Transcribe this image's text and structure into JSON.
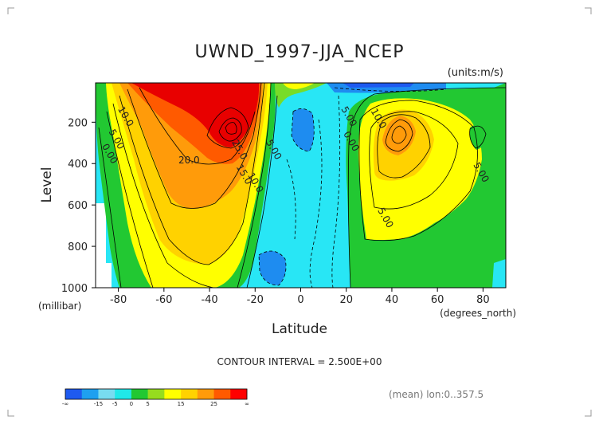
{
  "chart_data": {
    "type": "contour",
    "title": "UWND_1997-JJA_NCEP",
    "units": "(units:m/s)",
    "xlabel": "Latitude",
    "xunits": "(degrees_north)",
    "ylabel": "Level",
    "yunits": "(millibar)",
    "x_ticks": [
      "-80",
      "-60",
      "-40",
      "-20",
      "0",
      "20",
      "40",
      "60",
      "80"
    ],
    "x_tick_values": [
      -80,
      -60,
      -40,
      -20,
      0,
      20,
      40,
      60,
      80
    ],
    "xlim": [
      -90,
      90
    ],
    "y_ticks": [
      "200",
      "400",
      "600",
      "800",
      "1000"
    ],
    "y_tick_values": [
      200,
      400,
      600,
      800,
      1000
    ],
    "ylim": [
      1000,
      10
    ],
    "contour_interval_label": "CONTOUR INTERVAL = 2.500E+00",
    "footer_note": "(mean) lon:0..357.5",
    "contour_labels": [
      {
        "text": "10.0",
        "lat": -78,
        "level": 180
      },
      {
        "text": "5.00",
        "lat": -82,
        "level": 290
      },
      {
        "text": "0.00",
        "lat": -85,
        "level": 360
      },
      {
        "text": "20.0",
        "lat": -49,
        "level": 400
      },
      {
        "text": "25.0",
        "lat": -28,
        "level": 340
      },
      {
        "text": "15.0",
        "lat": -26,
        "level": 460
      },
      {
        "text": "10.0",
        "lat": -21,
        "level": 500
      },
      {
        "text": "5.00",
        "lat": -13,
        "level": 340
      },
      {
        "text": "5.00",
        "lat": 20,
        "level": 180
      },
      {
        "text": "0.00",
        "lat": 21,
        "level": 300
      },
      {
        "text": "10.0",
        "lat": 33,
        "level": 190
      },
      {
        "text": "5.00",
        "lat": 78,
        "level": 450
      },
      {
        "text": "5.00",
        "lat": 36,
        "level": 670
      }
    ],
    "colorbar": {
      "labels": [
        "-∞",
        "-15",
        "-5",
        "0",
        "5",
        "15",
        "25",
        "∞"
      ],
      "colors": [
        "#1e5af0",
        "#1ea0f0",
        "#78dcf0",
        "#20e8e8",
        "#22c832",
        "#96dc1e",
        "#ffff00",
        "#ffd200",
        "#ff9b0a",
        "#ff5a00",
        "#ff0000"
      ]
    },
    "fill_colors": {
      "very_negative": "#1e5af0",
      "negative": "#1ea0f0",
      "slightly_negative": "#28e6f5",
      "slightly_positive": "#22c832",
      "weak": "#78dc28",
      "moderate": "#ffff00",
      "strong": "#ffd200",
      "stronger": "#ff9b0a",
      "very_strong": "#ff5a00",
      "jet_core": "#e80000"
    }
  }
}
